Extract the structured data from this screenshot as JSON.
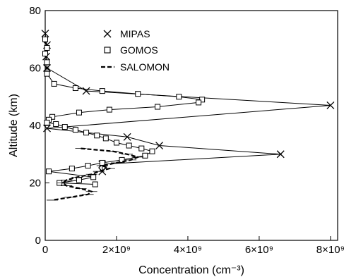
{
  "chart_data": {
    "type": "line",
    "title": "",
    "xlabel": "Concentration (cm⁻³)",
    "ylabel": "Altitude (km)",
    "xlim": [
      0,
      8200000000.0
    ],
    "ylim": [
      0,
      80
    ],
    "x_ticks": [
      {
        "value": 0,
        "label": "0"
      },
      {
        "value": 2000000000.0,
        "label": "2×10⁹"
      },
      {
        "value": 4000000000.0,
        "label": "4×10⁹"
      },
      {
        "value": 6000000000.0,
        "label": "6×10⁹"
      },
      {
        "value": 8000000000.0,
        "label": "8×10⁹"
      }
    ],
    "y_ticks": [
      {
        "value": 0,
        "label": "0"
      },
      {
        "value": 20,
        "label": "20"
      },
      {
        "value": 40,
        "label": "40"
      },
      {
        "value": 60,
        "label": "60"
      },
      {
        "value": 80,
        "label": "80"
      }
    ],
    "grid": false,
    "legend_position": "top-center",
    "series": [
      {
        "name": "MIPAS",
        "marker": "x",
        "line": "solid",
        "points": [
          [
            0.0,
            72
          ],
          [
            50000000.0,
            68
          ],
          [
            30000000.0,
            64
          ],
          [
            50000000.0,
            60
          ],
          [
            1150000000.0,
            52
          ],
          [
            8000000000.0,
            47
          ],
          [
            50000000.0,
            39
          ],
          [
            2300000000.0,
            36
          ],
          [
            3200000000.0,
            33
          ],
          [
            6600000000.0,
            30
          ],
          [
            1600000000.0,
            26.5
          ],
          [
            1600000000.0,
            24
          ]
        ]
      },
      {
        "name": "GOMOS",
        "marker": "square",
        "line": "solid",
        "points": [
          [
            0.0,
            70
          ],
          [
            50000000.0,
            67
          ],
          [
            0.0,
            65
          ],
          [
            50000000.0,
            62
          ],
          [
            50000000.0,
            58
          ],
          [
            250000000.0,
            54.5
          ],
          [
            850000000.0,
            53
          ],
          [
            1600000000.0,
            52
          ],
          [
            2600000000.0,
            51
          ],
          [
            3750000000.0,
            50
          ],
          [
            4400000000.0,
            49
          ],
          [
            4300000000.0,
            48
          ],
          [
            3150000000.0,
            46.5
          ],
          [
            1800000000.0,
            45.5
          ],
          [
            950000000.0,
            44.5
          ],
          [
            200000000.0,
            43
          ],
          [
            100000000.0,
            42
          ],
          [
            50000000.0,
            41
          ],
          [
            300000000.0,
            40.5
          ],
          [
            550000000.0,
            39.5
          ],
          [
            850000000.0,
            38.5
          ],
          [
            1150000000.0,
            37.5
          ],
          [
            1450000000.0,
            36.5
          ],
          [
            1700000000.0,
            35.5
          ],
          [
            2000000000.0,
            34
          ],
          [
            2350000000.0,
            33
          ],
          [
            2700000000.0,
            32
          ],
          [
            3000000000.0,
            31
          ],
          [
            2800000000.0,
            29.5
          ],
          [
            2150000000.0,
            28
          ],
          [
            1600000000.0,
            27
          ],
          [
            1200000000.0,
            26
          ],
          [
            750000000.0,
            25
          ],
          [
            100000000.0,
            24
          ],
          [
            1350000000.0,
            22
          ],
          [
            950000000.0,
            21
          ],
          [
            400000000.0,
            20
          ],
          [
            1400000000.0,
            19.5
          ]
        ]
      },
      {
        "name": "SALOMON",
        "marker": "none",
        "line": "dashed",
        "points": [
          [
            1000000000.0,
            32
          ],
          [
            1900000000.0,
            31
          ],
          [
            2300000000.0,
            30
          ],
          [
            2600000000.0,
            29
          ],
          [
            2400000000.0,
            28
          ],
          [
            2000000000.0,
            27
          ],
          [
            1600000000.0,
            26
          ],
          [
            1800000000.0,
            25
          ],
          [
            1500000000.0,
            24
          ],
          [
            1300000000.0,
            23
          ],
          [
            900000000.0,
            22
          ],
          [
            600000000.0,
            21
          ],
          [
            500000000.0,
            20
          ],
          [
            600000000.0,
            19
          ],
          [
            1000000000.0,
            18
          ],
          [
            1300000000.0,
            17
          ],
          [
            1200000000.0,
            16
          ],
          [
            700000000.0,
            15
          ],
          [
            200000000.0,
            14
          ]
        ]
      }
    ]
  }
}
